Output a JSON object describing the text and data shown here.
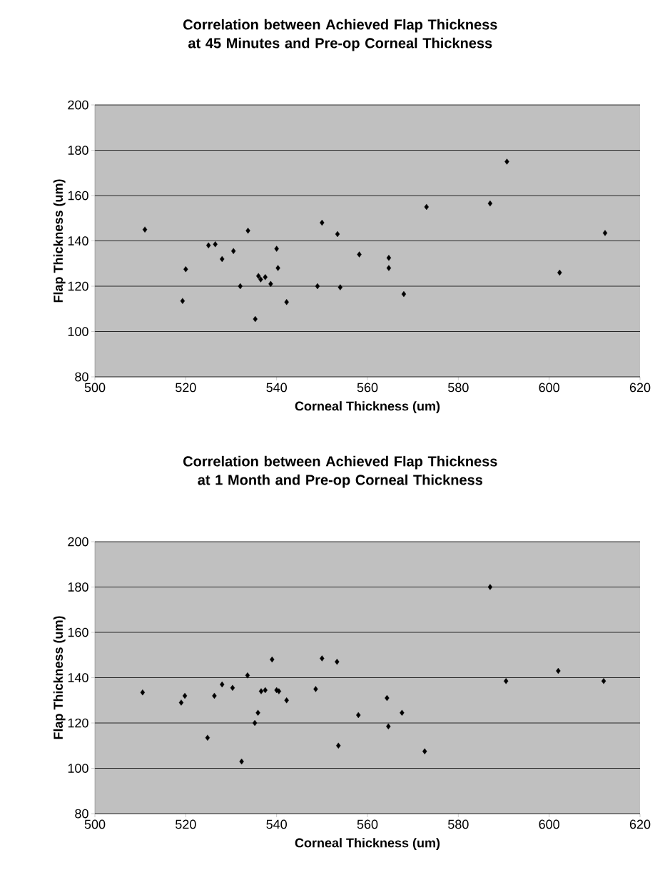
{
  "chart_data": [
    {
      "type": "scatter",
      "title": "Correlation between Achieved Flap Thickness at 45 Minutes and Pre-op Corneal Thickness",
      "xlabel": "Corneal Thickness (um)",
      "ylabel": "Flap Thickness (um)",
      "x": [
        511,
        519.3,
        520,
        525,
        526.5,
        528,
        530.5,
        532,
        533.7,
        535.3,
        536,
        536.5,
        537.5,
        538.7,
        540,
        540.3,
        542.2,
        549,
        550,
        553.4,
        554,
        558.2,
        564.7,
        564.7,
        568,
        573,
        587,
        590.7,
        602.3,
        612.3
      ],
      "values": [
        145,
        113.5,
        127.5,
        138,
        138.5,
        132,
        135.5,
        120,
        144.5,
        105.5,
        124.5,
        123,
        124,
        121,
        136.5,
        128,
        113,
        120,
        148,
        143,
        119.5,
        134,
        132.5,
        128,
        116.5,
        155,
        156.5,
        175,
        126,
        143.5
      ],
      "color": "#000000",
      "marker": "diamond",
      "grid": "y",
      "xlim": [
        500,
        620
      ],
      "ylim": [
        80,
        200
      ],
      "xticks": [
        500,
        520,
        540,
        560,
        580,
        600,
        620
      ],
      "yticks": [
        80,
        100,
        120,
        140,
        160,
        180,
        200
      ]
    },
    {
      "type": "scatter",
      "title": "Correlation between Achieved Flap Thickness at 1 Month and Pre-op Corneal Thickness",
      "xlabel": "Corneal Thickness (um)",
      "ylabel": "Flap Thickness (um)",
      "x": [
        510.5,
        519,
        519.8,
        524.8,
        526.3,
        528,
        530.3,
        532.3,
        533.6,
        535.2,
        535.9,
        536.6,
        537.5,
        539,
        540,
        540.5,
        542.2,
        548.6,
        550,
        553.3,
        553.6,
        558,
        564.3,
        564.6,
        567.6,
        572.6,
        587,
        590.5,
        602,
        612
      ],
      "values": [
        133.5,
        129,
        132,
        113.5,
        132,
        137,
        135.5,
        103,
        141,
        120,
        124.5,
        134,
        134.5,
        148,
        134.5,
        134,
        130,
        135,
        148.5,
        147,
        110,
        123.5,
        131,
        118.5,
        124.5,
        107.5,
        180,
        138.5,
        143,
        138.5
      ],
      "color": "#000000",
      "marker": "diamond",
      "grid": "y",
      "xlim": [
        500,
        620
      ],
      "ylim": [
        80,
        200
      ],
      "xticks": [
        500,
        520,
        540,
        560,
        580,
        600,
        620
      ],
      "yticks": [
        80,
        100,
        120,
        140,
        160,
        180,
        200
      ]
    }
  ]
}
